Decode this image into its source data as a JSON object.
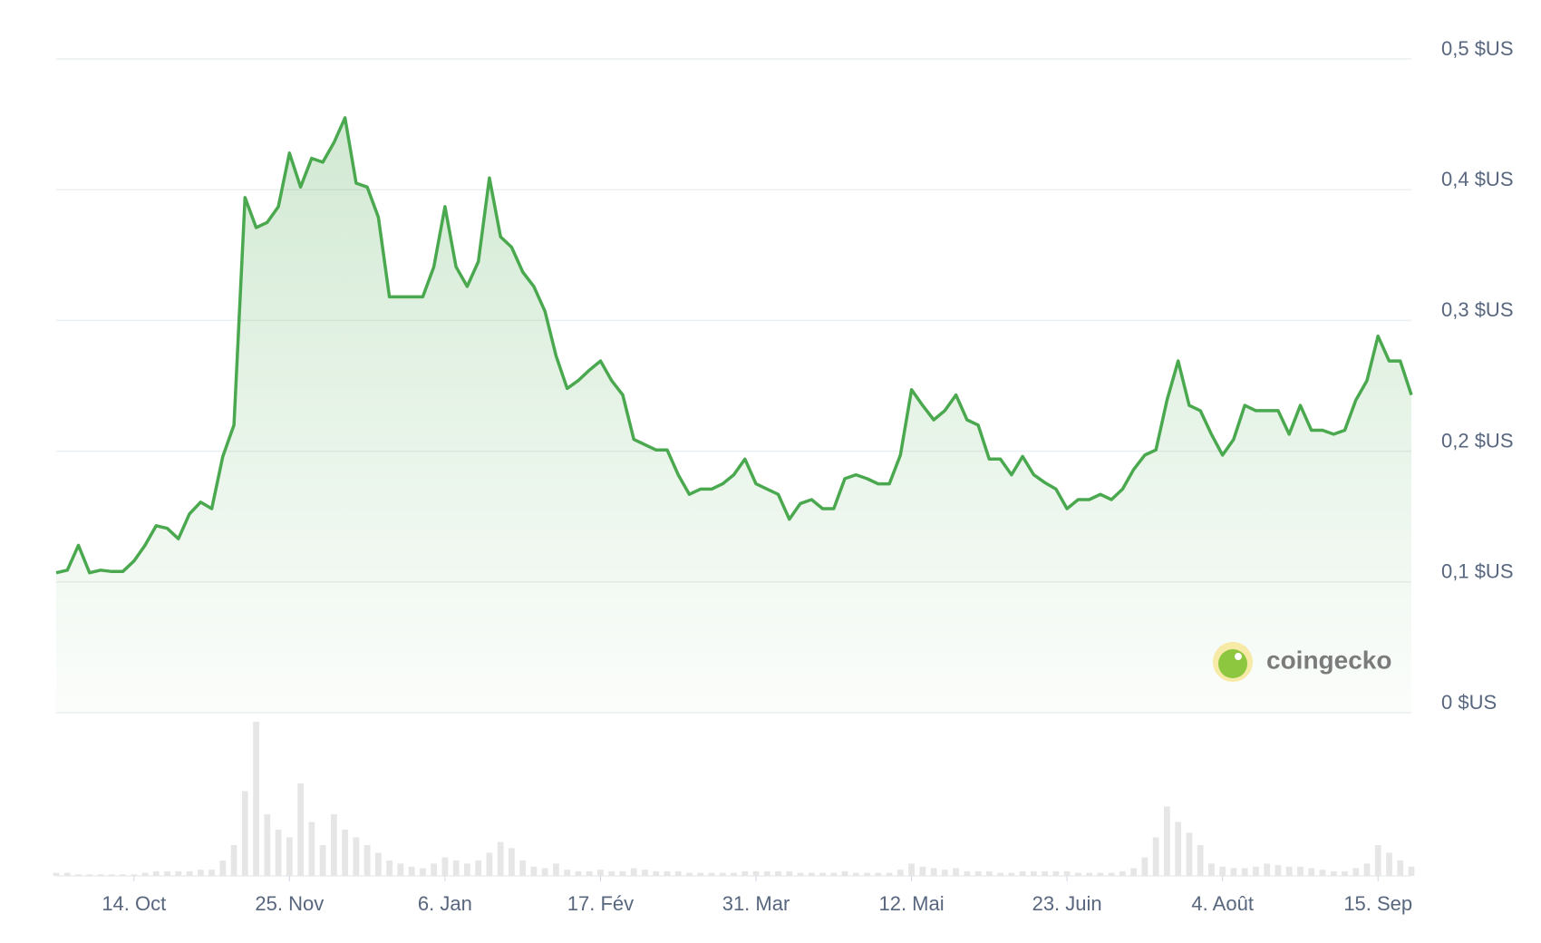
{
  "chart_data": {
    "type": "line",
    "color": "#4aa84f",
    "grid": true,
    "ylim": [
      0,
      0.5
    ],
    "yticks": [
      {
        "value": 0,
        "label": "0 $US"
      },
      {
        "value": 0.1,
        "label": "0,1 $US"
      },
      {
        "value": 0.2,
        "label": "0,2 $US"
      },
      {
        "value": 0.3,
        "label": "0,3 $US"
      },
      {
        "value": 0.4,
        "label": "0,4 $US"
      },
      {
        "value": 0.5,
        "label": "0,5 $US"
      }
    ],
    "categories": [
      null,
      null,
      null,
      null,
      null,
      null,
      null,
      "14. Oct",
      null,
      null,
      null,
      null,
      null,
      null,
      null,
      null,
      null,
      null,
      null,
      null,
      null,
      "25. Nov",
      null,
      null,
      null,
      null,
      null,
      null,
      null,
      null,
      null,
      null,
      null,
      null,
      null,
      "6. Jan",
      null,
      null,
      null,
      null,
      null,
      null,
      null,
      null,
      null,
      null,
      null,
      null,
      null,
      "17. Fév",
      null,
      null,
      null,
      null,
      null,
      null,
      null,
      null,
      null,
      null,
      null,
      null,
      null,
      "31. Mar",
      null,
      null,
      null,
      null,
      null,
      null,
      null,
      null,
      null,
      null,
      null,
      null,
      null,
      "12. Mai",
      null,
      null,
      null,
      null,
      null,
      null,
      null,
      null,
      null,
      null,
      null,
      null,
      null,
      "23. Juin",
      null,
      null,
      null,
      null,
      null,
      null,
      null,
      null,
      null,
      null,
      null,
      null,
      null,
      "4. Août",
      null,
      null,
      null,
      null,
      null,
      null,
      null,
      null,
      null,
      null,
      null,
      null,
      null,
      "15. Sep",
      null,
      null,
      null
    ],
    "values": [
      0.107,
      0.109,
      0.128,
      0.107,
      0.109,
      0.108,
      0.108,
      0.116,
      0.128,
      0.143,
      0.141,
      0.133,
      0.152,
      0.161,
      0.156,
      0.196,
      0.22,
      0.394,
      0.371,
      0.375,
      0.387,
      0.428,
      0.402,
      0.424,
      0.421,
      0.436,
      0.455,
      0.405,
      0.402,
      0.379,
      0.318,
      0.318,
      0.318,
      0.318,
      0.341,
      0.387,
      0.341,
      0.326,
      0.345,
      0.409,
      0.364,
      0.356,
      0.337,
      0.326,
      0.307,
      0.273,
      0.248,
      0.254,
      0.262,
      0.269,
      0.254,
      0.243,
      0.209,
      0.205,
      0.201,
      0.201,
      0.182,
      0.167,
      0.171,
      0.171,
      0.175,
      0.182,
      0.194,
      0.175,
      0.171,
      0.167,
      0.148,
      0.16,
      0.163,
      0.156,
      0.156,
      0.179,
      0.182,
      0.179,
      0.175,
      0.175,
      0.197,
      0.247,
      0.235,
      0.224,
      0.231,
      0.243,
      0.224,
      0.22,
      0.194,
      0.194,
      0.182,
      0.196,
      0.182,
      0.176,
      0.171,
      0.156,
      0.163,
      0.163,
      0.167,
      0.163,
      0.171,
      0.186,
      0.197,
      0.201,
      0.239,
      0.269,
      0.235,
      0.231,
      0.213,
      0.197,
      0.209,
      0.235,
      0.231,
      0.231,
      0.231,
      0.213,
      0.235,
      0.216,
      0.216,
      0.213,
      0.216,
      0.239,
      0.254,
      0.288,
      0.269,
      0.269,
      0.243
    ],
    "volume": {
      "color": "#e6e6e6",
      "values": [
        2,
        2,
        1,
        1,
        1,
        1,
        1,
        1,
        2,
        3,
        3,
        3,
        3,
        4,
        4,
        10,
        20,
        55,
        100,
        40,
        30,
        25,
        60,
        35,
        20,
        40,
        30,
        25,
        20,
        15,
        10,
        8,
        6,
        5,
        8,
        12,
        10,
        8,
        10,
        15,
        22,
        18,
        10,
        6,
        5,
        8,
        4,
        3,
        3,
        4,
        3,
        3,
        5,
        4,
        3,
        3,
        3,
        2,
        2,
        2,
        2,
        2,
        3,
        3,
        3,
        3,
        3,
        2,
        2,
        2,
        2,
        3,
        2,
        2,
        2,
        2,
        4,
        8,
        6,
        5,
        4,
        5,
        3,
        3,
        3,
        2,
        2,
        3,
        3,
        3,
        3,
        3,
        2,
        2,
        2,
        2,
        3,
        5,
        12,
        25,
        45,
        35,
        28,
        20,
        8,
        6,
        5,
        5,
        6,
        8,
        7,
        6,
        6,
        5,
        4,
        3,
        3,
        5,
        8,
        20,
        15,
        10,
        6
      ]
    },
    "watermark": "coingecko"
  }
}
